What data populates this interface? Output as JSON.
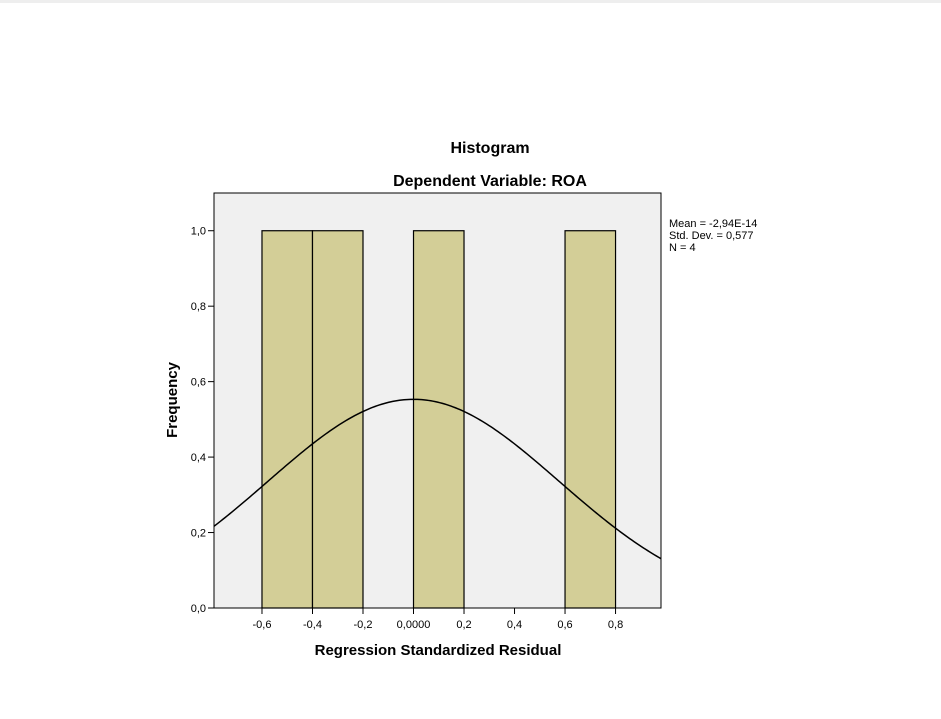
{
  "chart_data": {
    "type": "bar",
    "subtype": "histogram",
    "title": "Histogram",
    "subtitle": "Dependent Variable: ROA",
    "xlabel": "Regression Standardized Residual",
    "ylabel": "Frequency",
    "xlim": [
      -0.79,
      0.98
    ],
    "ylim": [
      0,
      1.1
    ],
    "x_ticks": [
      {
        "value": -0.6,
        "label": "-0,6"
      },
      {
        "value": -0.4,
        "label": "-0,4"
      },
      {
        "value": -0.2,
        "label": "-0,2"
      },
      {
        "value": 0.0,
        "label": "0,0000"
      },
      {
        "value": 0.2,
        "label": "0,2"
      },
      {
        "value": 0.4,
        "label": "0,4"
      },
      {
        "value": 0.6,
        "label": "0,6"
      },
      {
        "value": 0.8,
        "label": "0,8"
      }
    ],
    "y_ticks": [
      {
        "value": 0.0,
        "label": "0,0"
      },
      {
        "value": 0.2,
        "label": "0,2"
      },
      {
        "value": 0.4,
        "label": "0,4"
      },
      {
        "value": 0.6,
        "label": "0,6"
      },
      {
        "value": 0.8,
        "label": "0,8"
      },
      {
        "value": 1.0,
        "label": "1,0"
      }
    ],
    "bins": [
      {
        "start": -0.6,
        "end": -0.4,
        "count": 1
      },
      {
        "start": -0.4,
        "end": -0.2,
        "count": 1
      },
      {
        "start": 0.0,
        "end": 0.2,
        "count": 1
      },
      {
        "start": 0.6,
        "end": 0.8,
        "count": 1
      }
    ],
    "normal_curve": {
      "mean": 0.0,
      "std": 0.577,
      "n": 4,
      "bin_width": 0.2
    },
    "stats": [
      "Mean = -2,94E-14",
      "Std. Dev. = 0,577",
      "N = 4"
    ],
    "grid": false,
    "colors": {
      "plot_background": "#f0f0f0",
      "bar_fill": "#d3ce97",
      "bar_stroke": "#000000",
      "curve": "#000000",
      "axis": "#000000"
    }
  }
}
